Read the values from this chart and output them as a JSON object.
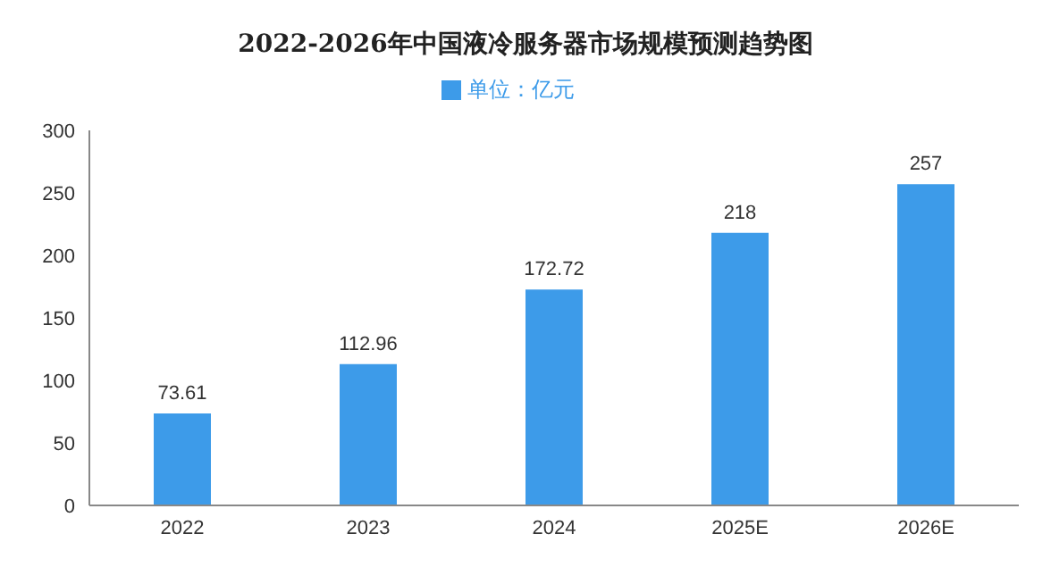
{
  "chart_data": {
    "type": "bar",
    "title": "2022-2026年中国液冷服务器市场规模预测趋势图",
    "categories": [
      "2022",
      "2023",
      "2024",
      "2025E",
      "2026E"
    ],
    "series": [
      {
        "name": "单位：亿元",
        "color": "#3d9be9",
        "values": [
          73.61,
          112.96,
          172.72,
          218,
          257
        ]
      }
    ],
    "ylim": [
      0,
      300
    ],
    "yticks": [
      0,
      50,
      100,
      150,
      200,
      250,
      300
    ],
    "data_labels": true,
    "legend": "top",
    "grid": false
  }
}
